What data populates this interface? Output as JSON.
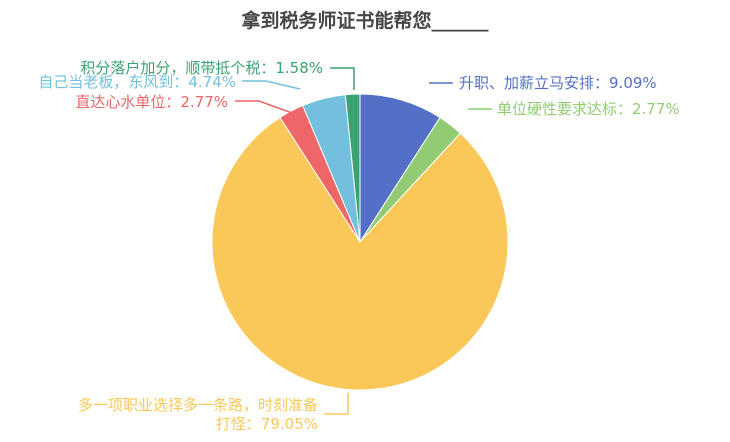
{
  "chart_data": {
    "type": "pie",
    "title": "拿到税务师证书能帮您______",
    "slices": [
      {
        "label": "升职、加薪立马安排",
        "value": 9.09,
        "value_text": "9.09%",
        "color": "#5470c6"
      },
      {
        "label": "单位硬性要求达标",
        "value": 2.77,
        "value_text": "2.77%",
        "color": "#91cc75"
      },
      {
        "label": "多一项职业选择多一条路，时刻准备打怪",
        "value": 79.05,
        "value_text": "79.05%",
        "color": "#fac858"
      },
      {
        "label": "直达心水单位",
        "value": 2.77,
        "value_text": "2.77%",
        "color": "#ee6666"
      },
      {
        "label": "自己当老板，东风到",
        "value": 4.74,
        "value_text": "4.74%",
        "color": "#73c0de"
      },
      {
        "label": "积分落户加分，顺带抵个税",
        "value": 1.58,
        "value_text": "1.58%",
        "color": "#3ba272"
      }
    ]
  }
}
